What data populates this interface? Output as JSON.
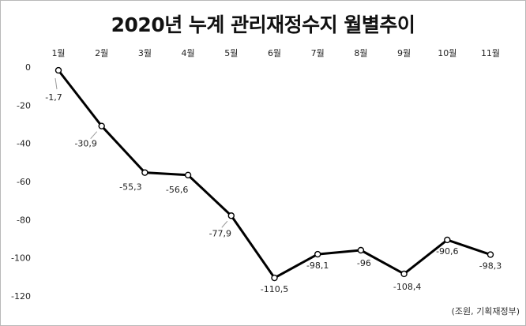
{
  "title": "2020년 누계 관리재정수지 월별추이",
  "source": "(조원, 기획재정부)",
  "chart_data": {
    "type": "line",
    "title": "2020년 누계 관리재정수지 월별추이",
    "categories": [
      "1월",
      "2월",
      "3월",
      "4월",
      "5월",
      "6월",
      "7월",
      "8월",
      "9월",
      "10월",
      "11월"
    ],
    "series": [
      {
        "values": [
          -1.7,
          -30.9,
          -55.3,
          -56.6,
          -77.9,
          -110.5,
          -98.1,
          -96,
          -108.4,
          -90.6,
          -98.3
        ],
        "labels": [
          "-1,7",
          "-30,9",
          "-55,3",
          "-56,6",
          "-77,9",
          "-110,5",
          "-98,1",
          "-96",
          "-108,4",
          "-90,6",
          "-98,3"
        ]
      }
    ],
    "yticks": [
      0,
      -20,
      -40,
      -60,
      -80,
      -100,
      -120
    ],
    "ylim": [
      -120,
      0
    ],
    "xaxis_position": "top",
    "grid": false,
    "colors": {
      "line": "#000000",
      "marker_fill": "#ffffff",
      "leader": "#9a9a9a",
      "text": "#222222"
    }
  }
}
